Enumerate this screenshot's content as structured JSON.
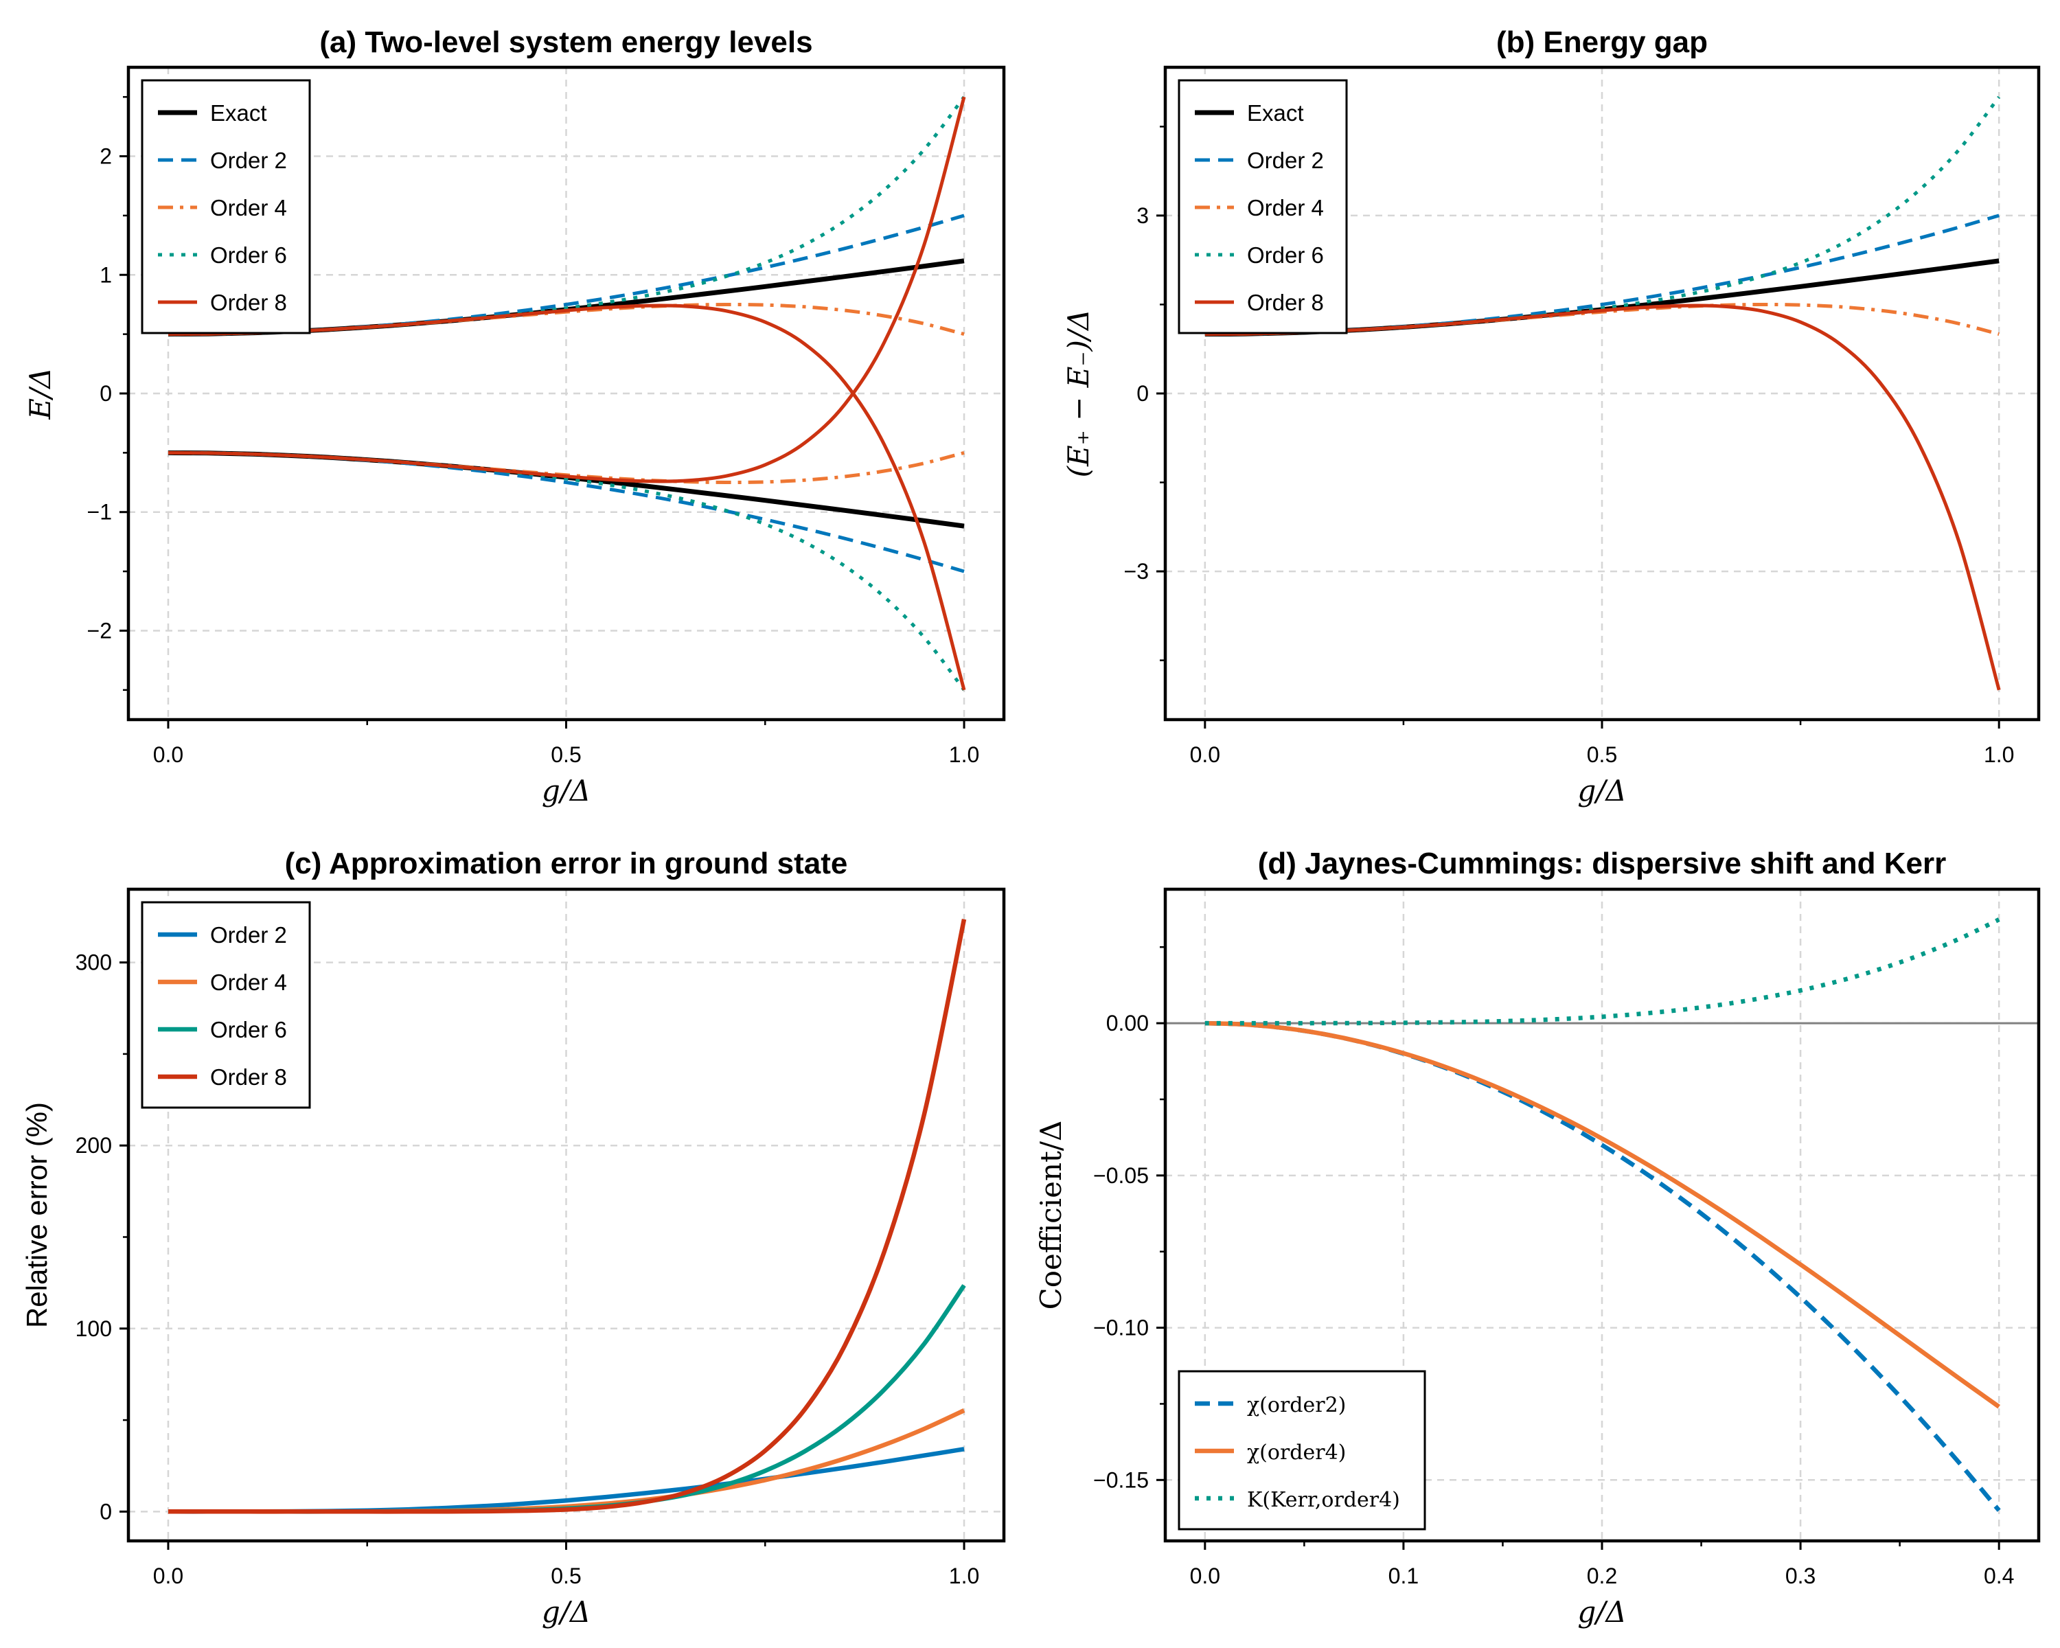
{
  "chart_data": [
    {
      "type": "line",
      "title": "(a) Two-level system energy levels",
      "xlabel": "g/Δ",
      "ylabel": "E/Δ",
      "ylabel_style": "math",
      "xlim": [
        -0.05,
        1.05
      ],
      "ylim": [
        -2.75,
        2.75
      ],
      "xticks": [
        0,
        0.5,
        1.0
      ],
      "xtick_labels": [
        "0.0",
        "0.5",
        "1.0"
      ],
      "x_minor_ticks": [
        0.25,
        0.75
      ],
      "yticks": [
        -2,
        -1,
        0,
        1,
        2
      ],
      "ytick_labels": [
        "−2",
        "−1",
        "0",
        "1",
        "2"
      ],
      "y_minor_ticks": [
        -2.5,
        -1.5,
        -0.5,
        0.5,
        1.5,
        2.5
      ],
      "grid": true,
      "legend": "upper-left",
      "x": [
        0,
        0.05,
        0.1,
        0.15,
        0.2,
        0.25,
        0.3,
        0.35,
        0.4,
        0.45,
        0.5,
        0.55,
        0.6,
        0.65,
        0.7,
        0.75,
        0.8,
        0.85,
        0.9,
        0.95,
        1.0
      ],
      "series": [
        {
          "name": "Exact",
          "color": "#000000",
          "style": "solid",
          "y_upper": [
            0.5,
            0.5025,
            0.5099,
            0.522,
            0.5385,
            0.559,
            0.5831,
            0.6103,
            0.6403,
            0.6727,
            0.7071,
            0.7433,
            0.781,
            0.8201,
            0.8602,
            0.9014,
            0.9434,
            0.9862,
            1.0296,
            1.0735,
            1.118
          ],
          "y_lower": [
            -0.5,
            -0.5025,
            -0.5099,
            -0.522,
            -0.5385,
            -0.559,
            -0.5831,
            -0.6103,
            -0.6403,
            -0.6727,
            -0.7071,
            -0.7433,
            -0.781,
            -0.8201,
            -0.8602,
            -0.9014,
            -0.9434,
            -0.9862,
            -1.0296,
            -1.0735,
            -1.118
          ]
        },
        {
          "name": "Order 2",
          "color": "#0077BB",
          "style": "dashed",
          "y_upper": [
            0.5,
            0.5025,
            0.51,
            0.5225,
            0.54,
            0.5625,
            0.59,
            0.6225,
            0.66,
            0.7025,
            0.75,
            0.8025,
            0.86,
            0.9225,
            0.99,
            1.0625,
            1.14,
            1.2225,
            1.31,
            1.4025,
            1.5
          ],
          "y_lower": [
            -0.5,
            -0.5025,
            -0.51,
            -0.5225,
            -0.54,
            -0.5625,
            -0.59,
            -0.6225,
            -0.66,
            -0.7025,
            -0.75,
            -0.8025,
            -0.86,
            -0.9225,
            -0.99,
            -1.0625,
            -1.14,
            -1.2225,
            -1.31,
            -1.4025,
            -1.5
          ]
        },
        {
          "name": "Order 4",
          "color": "#EE7733",
          "style": "dashdot",
          "y_upper": [
            0.5,
            0.5025,
            0.5099,
            0.522,
            0.5384,
            0.5586,
            0.5819,
            0.6075,
            0.6344,
            0.6614,
            0.6875,
            0.711,
            0.7304,
            0.744,
            0.7499,
            0.7461,
            0.7304,
            0.7005,
            0.6539,
            0.588,
            0.5
          ],
          "y_lower": [
            -0.5,
            -0.5025,
            -0.5099,
            -0.522,
            -0.5384,
            -0.5586,
            -0.5819,
            -0.6075,
            -0.6344,
            -0.6614,
            -0.6875,
            -0.711,
            -0.7304,
            -0.744,
            -0.7499,
            -0.7461,
            -0.7304,
            -0.7005,
            -0.6539,
            -0.588,
            -0.5
          ]
        },
        {
          "name": "Order 6",
          "color": "#009988",
          "style": "dotted",
          "y_upper": [
            0.5,
            0.5025,
            0.5099,
            0.522,
            0.5385,
            0.5591,
            0.5834,
            0.6112,
            0.6426,
            0.678,
            0.7188,
            0.7664,
            0.8237,
            0.8948,
            0.9852,
            1.1021,
            1.2547,
            1.4548,
            1.7168,
            2.0582,
            2.5
          ],
          "y_lower": [
            -0.5,
            -0.5025,
            -0.5099,
            -0.522,
            -0.5385,
            -0.5591,
            -0.5834,
            -0.6112,
            -0.6426,
            -0.678,
            -0.7188,
            -0.7664,
            -0.8237,
            -0.8948,
            -0.9852,
            -1.1021,
            -1.2547,
            -1.4548,
            -1.7168,
            -2.0582,
            -2.5
          ]
        },
        {
          "name": "Order 8",
          "color": "#CC3311",
          "style": "solid",
          "y_upper": [
            0.5,
            0.5025,
            0.5099,
            0.522,
            0.5385,
            0.559,
            0.5831,
            0.6101,
            0.6393,
            0.6696,
            0.6992,
            0.7245,
            0.7397,
            0.7355,
            0.697,
            0.6015,
            0.4159,
            0.0923,
            -0.4355,
            -1.2589,
            -2.5
          ],
          "y_lower": [
            -0.5,
            -0.5025,
            -0.5099,
            -0.522,
            -0.5385,
            -0.559,
            -0.5831,
            -0.6101,
            -0.6393,
            -0.6696,
            -0.6992,
            -0.7245,
            -0.7397,
            -0.7355,
            -0.697,
            -0.6015,
            -0.4159,
            -0.0923,
            0.4355,
            1.2589,
            2.5
          ]
        }
      ]
    },
    {
      "type": "line",
      "title": "(b) Energy gap",
      "xlabel": "g/Δ",
      "ylabel": "(E₊ − E₋)/Δ",
      "ylabel_style": "math",
      "xlim": [
        -0.05,
        1.05
      ],
      "ylim": [
        -5.5,
        5.5
      ],
      "xticks": [
        0,
        0.5,
        1.0
      ],
      "xtick_labels": [
        "0.0",
        "0.5",
        "1.0"
      ],
      "x_minor_ticks": [
        0.25,
        0.75
      ],
      "yticks": [
        -3,
        0,
        3
      ],
      "ytick_labels": [
        "−3",
        "0",
        "3"
      ],
      "y_minor_ticks": [
        -4.5,
        -1.5,
        1.5,
        4.5
      ],
      "grid": true,
      "legend": "upper-left",
      "x": [
        0,
        0.05,
        0.1,
        0.15,
        0.2,
        0.25,
        0.3,
        0.35,
        0.4,
        0.45,
        0.5,
        0.55,
        0.6,
        0.65,
        0.7,
        0.75,
        0.8,
        0.85,
        0.9,
        0.95,
        1.0
      ],
      "series": [
        {
          "name": "Exact",
          "color": "#000000",
          "style": "solid",
          "y": [
            1,
            1.005,
            1.0198,
            1.044,
            1.077,
            1.118,
            1.1662,
            1.2207,
            1.2806,
            1.3454,
            1.4142,
            1.4866,
            1.562,
            1.6401,
            1.7205,
            1.8028,
            1.8868,
            1.9723,
            2.0591,
            2.1471,
            2.2361
          ]
        },
        {
          "name": "Order 2",
          "color": "#0077BB",
          "style": "dashed",
          "y": [
            1,
            1.005,
            1.02,
            1.045,
            1.08,
            1.125,
            1.18,
            1.245,
            1.32,
            1.405,
            1.5,
            1.605,
            1.72,
            1.845,
            1.98,
            2.125,
            2.28,
            2.445,
            2.62,
            2.805,
            3
          ]
        },
        {
          "name": "Order 4",
          "color": "#EE7733",
          "style": "dashdot",
          "y": [
            1,
            1.005,
            1.0198,
            1.044,
            1.0768,
            1.1172,
            1.1638,
            1.215,
            1.2688,
            1.3228,
            1.375,
            1.422,
            1.4608,
            1.488,
            1.4998,
            1.4922,
            1.4608,
            1.401,
            1.3078,
            1.176,
            1
          ]
        },
        {
          "name": "Order 6",
          "color": "#009988",
          "style": "dotted",
          "y": [
            1,
            1.005,
            1.0198,
            1.044,
            1.077,
            1.1182,
            1.1668,
            1.2224,
            1.2852,
            1.356,
            1.4376,
            1.5328,
            1.6474,
            1.7896,
            1.9704,
            2.2042,
            2.5094,
            2.9096,
            3.4336,
            4.1164,
            5
          ]
        },
        {
          "name": "Order 8",
          "color": "#CC3311",
          "style": "solid",
          "y": [
            1,
            1.005,
            1.0198,
            1.044,
            1.077,
            1.118,
            1.1662,
            1.2202,
            1.2786,
            1.3392,
            1.3984,
            1.449,
            1.4794,
            1.471,
            1.394,
            1.203,
            0.8318,
            0.1846,
            -0.871,
            -2.5178,
            -5
          ]
        }
      ]
    },
    {
      "type": "line",
      "title": "(c) Approximation error in ground state",
      "xlabel": "g/Δ",
      "ylabel": "Relative error (%)",
      "ylabel_style": "sans",
      "xlim": [
        -0.05,
        1.05
      ],
      "ylim": [
        -16,
        340
      ],
      "xticks": [
        0,
        0.5,
        1.0
      ],
      "xtick_labels": [
        "0.0",
        "0.5",
        "1.0"
      ],
      "x_minor_ticks": [
        0.25,
        0.75
      ],
      "yticks": [
        0,
        100,
        200,
        300
      ],
      "ytick_labels": [
        "0",
        "100",
        "200",
        "300"
      ],
      "y_minor_ticks": [
        50,
        150,
        250
      ],
      "grid": true,
      "legend": "upper-left",
      "x": [
        0,
        0.05,
        0.1,
        0.15,
        0.2,
        0.25,
        0.3,
        0.35,
        0.4,
        0.45,
        0.5,
        0.55,
        0.6,
        0.65,
        0.7,
        0.75,
        0.8,
        0.85,
        0.9,
        0.95,
        1.0
      ],
      "series": [
        {
          "name": "Order 2",
          "color": "#0077BB",
          "style": "solid",
          "y": [
            0,
            0,
            0.02,
            0.1,
            0.28,
            0.63,
            1.18,
            2.0,
            3.08,
            4.43,
            6.07,
            7.96,
            10.12,
            12.49,
            15.09,
            17.87,
            20.84,
            23.96,
            27.23,
            30.65,
            34.16
          ]
        },
        {
          "name": "Order 4",
          "color": "#EE7733",
          "style": "solid",
          "y": [
            0,
            0,
            0,
            0,
            0.02,
            0.07,
            0.21,
            0.46,
            0.92,
            1.68,
            2.77,
            4.35,
            6.48,
            9.28,
            12.82,
            17.23,
            22.58,
            28.97,
            36.49,
            45.23,
            55.28
          ]
        },
        {
          "name": "Order 6",
          "color": "#009988",
          "style": "solid",
          "y": [
            0,
            0,
            0,
            0,
            0,
            0.02,
            0.05,
            0.15,
            0.36,
            0.79,
            1.65,
            3.11,
            5.47,
            9.11,
            14.53,
            22.27,
            33.0,
            47.5,
            66.74,
            91.73,
            123.6
          ]
        },
        {
          "name": "Order 8",
          "color": "#CC3311",
          "style": "solid",
          "y": [
            0,
            0,
            0,
            0,
            0,
            0,
            0,
            0.03,
            0.16,
            0.46,
            1.12,
            2.53,
            5.29,
            10.32,
            18.97,
            33.27,
            55.91,
            90.64,
            142.3,
            217.3,
            323.6
          ]
        }
      ]
    },
    {
      "type": "line",
      "title": "(d) Jaynes-Cummings: dispersive shift and Kerr",
      "xlabel": "g/Δ",
      "ylabel": "Coefficient/Δ",
      "ylabel_style": "serif",
      "xlim": [
        -0.02,
        0.42
      ],
      "ylim": [
        -0.17,
        0.044
      ],
      "xticks": [
        0,
        0.1,
        0.2,
        0.3,
        0.4
      ],
      "xtick_labels": [
        "0.0",
        "0.1",
        "0.2",
        "0.3",
        "0.4"
      ],
      "x_minor_ticks": [
        0.05,
        0.15,
        0.25,
        0.35
      ],
      "yticks": [
        0,
        -0.05,
        -0.1,
        -0.15
      ],
      "ytick_labels": [
        "0.00",
        "−0.05",
        "−0.10",
        "−0.15"
      ],
      "y_minor_ticks": [
        0.025,
        -0.025,
        -0.075,
        -0.125
      ],
      "grid": true,
      "hline": {
        "y": 0,
        "color": "#808080"
      },
      "legend": "lower-left",
      "x": [
        0,
        0.02,
        0.04,
        0.06,
        0.08,
        0.1,
        0.12,
        0.14,
        0.16,
        0.18,
        0.2,
        0.22,
        0.24,
        0.26,
        0.28,
        0.3,
        0.32,
        0.34,
        0.36,
        0.38,
        0.4
      ],
      "series": [
        {
          "name": "χ(order2)",
          "color": "#0077BB",
          "style": "dashed",
          "y": [
            0,
            -0.0004,
            -0.0016,
            -0.0036,
            -0.0064,
            -0.01,
            -0.0144,
            -0.0196,
            -0.0256,
            -0.0324,
            -0.04,
            -0.0484,
            -0.0576,
            -0.0676,
            -0.0784,
            -0.09,
            -0.1024,
            -0.1156,
            -0.1296,
            -0.1444,
            -0.16
          ]
        },
        {
          "name": "χ(order4)",
          "color": "#EE7733",
          "style": "solid",
          "y": [
            0,
            -0.0004,
            -0.0016,
            -0.00358,
            -0.00635,
            -0.00987,
            -0.01412,
            -0.01909,
            -0.02473,
            -0.031,
            -0.03787,
            -0.04528,
            -0.05319,
            -0.06152,
            -0.07023,
            -0.07923,
            -0.08845,
            -0.09783,
            -0.10726,
            -0.11667,
            -0.12595
          ]
        },
        {
          "name": "K(Kerr,order4)",
          "color": "#009988",
          "style": "dotted",
          "y": [
            0,
            0,
            0,
            2e-05,
            5e-05,
            0.00013,
            0.00028,
            0.00051,
            0.00087,
            0.0014,
            0.00213,
            0.00312,
            0.00441,
            0.00608,
            0.00818,
            0.01077,
            0.01395,
            0.01777,
            0.02234,
            0.02773,
            0.03405
          ]
        }
      ]
    }
  ]
}
